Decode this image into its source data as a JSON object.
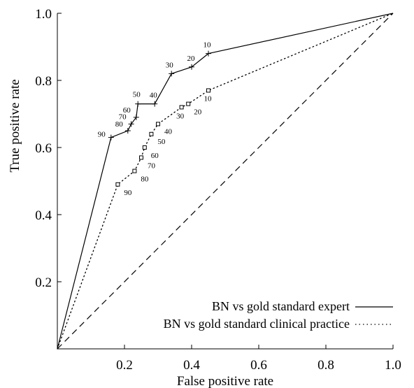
{
  "chart_data": {
    "type": "line",
    "title": "",
    "xlabel": "False positive rate",
    "ylabel": "True positive rate",
    "xlim": [
      0,
      1
    ],
    "ylim": [
      0,
      1
    ],
    "grid": false,
    "legend_position": "bottom-right",
    "x_ticks": [
      {
        "value": 0.2,
        "label": "0.2"
      },
      {
        "value": 0.4,
        "label": "0.4"
      },
      {
        "value": 0.6,
        "label": "0.6"
      },
      {
        "value": 0.8,
        "label": "0.8"
      },
      {
        "value": 1.0,
        "label": "1.0"
      }
    ],
    "y_ticks": [
      {
        "value": 0.2,
        "label": "0.2"
      },
      {
        "value": 0.4,
        "label": "0.4"
      },
      {
        "value": 0.6,
        "label": "0.6"
      },
      {
        "value": 0.8,
        "label": "0.8"
      },
      {
        "value": 1.0,
        "label": "1.0"
      }
    ],
    "series": [
      {
        "name": "BN vs gold standard expert",
        "style": "solid",
        "marker": "plus",
        "points": [
          {
            "x": 0.45,
            "y": 0.88,
            "label": "10"
          },
          {
            "x": 0.4,
            "y": 0.84,
            "label": "20"
          },
          {
            "x": 0.34,
            "y": 0.82,
            "label": "30"
          },
          {
            "x": 0.29,
            "y": 0.73,
            "label": "40"
          },
          {
            "x": 0.24,
            "y": 0.73,
            "label": "50"
          },
          {
            "x": 0.235,
            "y": 0.69,
            "label": "60"
          },
          {
            "x": 0.22,
            "y": 0.67,
            "label": "70"
          },
          {
            "x": 0.21,
            "y": 0.65,
            "label": "80"
          },
          {
            "x": 0.16,
            "y": 0.63,
            "label": "90"
          }
        ]
      },
      {
        "name": "BN vs gold standard clinical practice",
        "style": "dotted",
        "marker": "square",
        "points": [
          {
            "x": 0.45,
            "y": 0.77,
            "label": "10"
          },
          {
            "x": 0.39,
            "y": 0.73,
            "label": "20"
          },
          {
            "x": 0.37,
            "y": 0.72,
            "label": "30"
          },
          {
            "x": 0.3,
            "y": 0.67,
            "label": "40"
          },
          {
            "x": 0.28,
            "y": 0.64,
            "label": "50"
          },
          {
            "x": 0.26,
            "y": 0.6,
            "label": "60"
          },
          {
            "x": 0.25,
            "y": 0.57,
            "label": "70"
          },
          {
            "x": 0.23,
            "y": 0.53,
            "label": "80"
          },
          {
            "x": 0.18,
            "y": 0.49,
            "label": "90"
          }
        ]
      }
    ],
    "reference_line": {
      "style": "dashed",
      "from": [
        0,
        0
      ],
      "to": [
        1,
        1
      ]
    }
  }
}
